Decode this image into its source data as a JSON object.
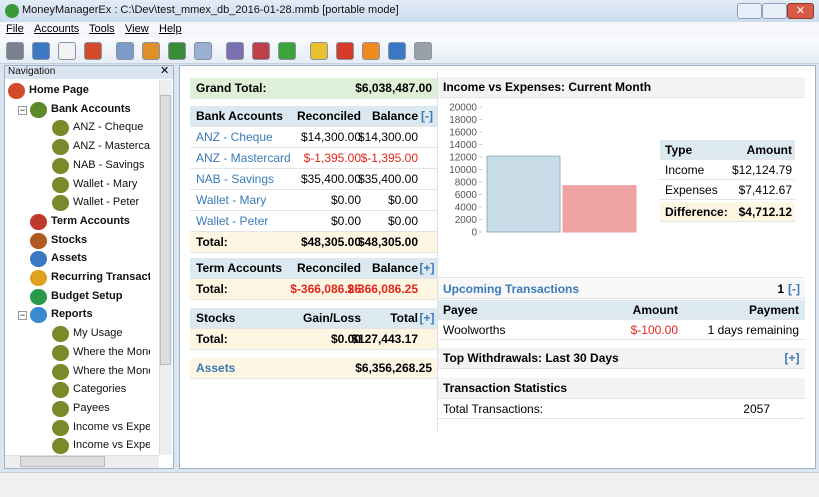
{
  "window": {
    "title": "MoneyManagerEx : C:\\Dev\\test_mmex_db_2016-01-28.mmb [portable mode]"
  },
  "menu": [
    "File",
    "Accounts",
    "Tools",
    "View",
    "Help"
  ],
  "navigation": {
    "title": "Navigation",
    "tree": [
      {
        "label": "Home Page",
        "children": [
          {
            "label": "Bank Accounts",
            "children": [
              {
                "label": "ANZ - Cheque"
              },
              {
                "label": "ANZ - Mastercard"
              },
              {
                "label": "NAB - Savings"
              },
              {
                "label": "Wallet - Mary"
              },
              {
                "label": "Wallet - Peter"
              }
            ]
          },
          {
            "label": "Term Accounts"
          },
          {
            "label": "Stocks"
          },
          {
            "label": "Assets"
          },
          {
            "label": "Recurring Transactions"
          },
          {
            "label": "Budget Setup"
          },
          {
            "label": "Reports",
            "children": [
              {
                "label": "My Usage"
              },
              {
                "label": "Where the Money G"
              },
              {
                "label": "Where the Money C"
              },
              {
                "label": "Categories"
              },
              {
                "label": "Payees"
              },
              {
                "label": "Income vs Expenses"
              },
              {
                "label": "Income vs Expenses"
              }
            ]
          }
        ]
      }
    ]
  },
  "grand_total": {
    "label": "Grand Total:",
    "value": "$6,038,487.00"
  },
  "bank_accounts": {
    "headers": [
      "Bank Accounts",
      "Reconciled",
      "Balance"
    ],
    "toggle": "[-]",
    "rows": [
      [
        "ANZ - Cheque",
        "$14,300.00",
        "$14,300.00"
      ],
      [
        "ANZ - Mastercard",
        "$-1,395.00",
        "$-1,395.00"
      ],
      [
        "NAB - Savings",
        "$35,400.00",
        "$35,400.00"
      ],
      [
        "Wallet - Mary",
        "$0.00",
        "$0.00"
      ],
      [
        "Wallet - Peter",
        "$0.00",
        "$0.00"
      ]
    ],
    "total": [
      "Total:",
      "$48,305.00",
      "$48,305.00"
    ]
  },
  "term_accounts": {
    "headers": [
      "Term Accounts",
      "Reconciled",
      "Balance"
    ],
    "toggle": "[+]",
    "total": [
      "Total:",
      "$-366,086.25",
      "$-366,086.25"
    ]
  },
  "stocks": {
    "headers": [
      "Stocks",
      "Gain/Loss",
      "Total"
    ],
    "toggle": "[+]",
    "total": [
      "Total:",
      "$0.00",
      "$127,443.17"
    ]
  },
  "assets": {
    "label": "Assets",
    "value": "$6,356,268.25"
  },
  "chart_data": {
    "type": "bar",
    "title": "Income vs Expenses: Current Month",
    "categories": [
      null,
      null
    ],
    "values": [
      12124.79,
      7412.67
    ],
    "colors": [
      "#c9dde8",
      "#f0a3a3"
    ],
    "ylim": [
      0,
      20000
    ],
    "yticks": [
      0,
      2000,
      4000,
      6000,
      8000,
      10000,
      12000,
      14000,
      16000,
      18000,
      20000
    ]
  },
  "summary": {
    "headers": [
      "Type",
      "Amount"
    ],
    "rows": [
      [
        "Income",
        "$12,124.79"
      ],
      [
        "Expenses",
        "$7,412.67"
      ]
    ],
    "difference": [
      "Difference:",
      "$4,712.12"
    ]
  },
  "upcoming": {
    "title": "Upcoming Transactions",
    "count": "1",
    "toggle": "[-]",
    "headers": [
      "Payee",
      "Amount",
      "Payment"
    ],
    "rows": [
      [
        "Woolworths",
        "$-100.00",
        "1 days remaining"
      ]
    ]
  },
  "withdrawals": {
    "title": "Top Withdrawals: Last 30 Days",
    "toggle": "[+]"
  },
  "statistics": {
    "title": "Transaction Statistics",
    "rows": [
      [
        "Total Transactions:",
        "2057"
      ]
    ]
  }
}
